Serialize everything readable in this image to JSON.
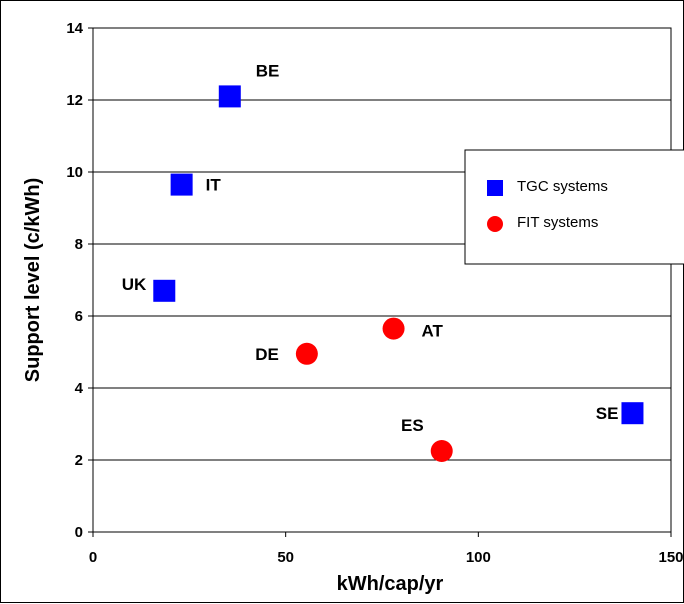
{
  "chart_data": {
    "type": "scatter",
    "title": "",
    "xlabel": "kWh/cap/yr",
    "ylabel": "Support level (c/kWh)",
    "xlim": [
      0,
      150
    ],
    "ylim": [
      0,
      14
    ],
    "x_ticks": [
      "0",
      "50",
      "100",
      "150"
    ],
    "y_ticks": [
      "0",
      "2",
      "4",
      "6",
      "8",
      "10",
      "12",
      "14"
    ],
    "grid": "horizontal",
    "legend_position": "right",
    "series": [
      {
        "name": "TGC systems",
        "marker": "square",
        "color": "#0000FF",
        "points": [
          {
            "label": "BE",
            "x": 35.5,
            "y": 12.1
          },
          {
            "label": "IT",
            "x": 23,
            "y": 9.65
          },
          {
            "label": "UK",
            "x": 18.5,
            "y": 6.7
          },
          {
            "label": "SE",
            "x": 140,
            "y": 3.3
          }
        ]
      },
      {
        "name": "FIT systems",
        "marker": "circle",
        "color": "#FF0000",
        "points": [
          {
            "label": "AT",
            "x": 78,
            "y": 5.65
          },
          {
            "label": "DE",
            "x": 55.5,
            "y": 4.95
          },
          {
            "label": "ES",
            "x": 90.5,
            "y": 2.25
          }
        ]
      }
    ]
  }
}
